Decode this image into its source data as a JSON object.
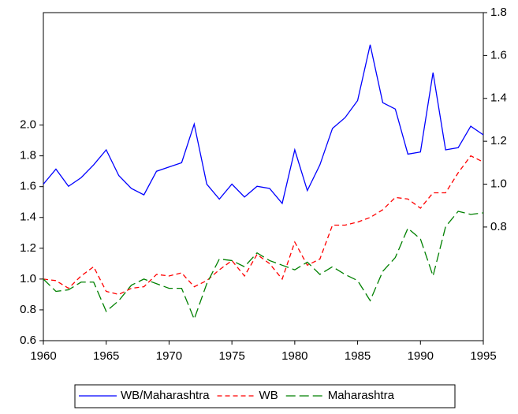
{
  "chart_data": {
    "type": "line",
    "x": [
      1960,
      1961,
      1962,
      1963,
      1964,
      1965,
      1966,
      1967,
      1968,
      1969,
      1970,
      1971,
      1972,
      1973,
      1974,
      1975,
      1976,
      1977,
      1978,
      1979,
      1980,
      1981,
      1982,
      1983,
      1984,
      1985,
      1986,
      1987,
      1988,
      1989,
      1990,
      1991,
      1992,
      1993,
      1994,
      1995
    ],
    "xlim": [
      1960,
      1995
    ],
    "xticks": [
      1960,
      1965,
      1970,
      1975,
      1980,
      1985,
      1990,
      1995
    ],
    "ylim": [
      0.6,
      2.73
    ],
    "yticks": [
      0.6,
      0.8,
      {
        "value": 1.0,
        "label": "1.0"
      },
      1.2,
      1.4,
      1.6,
      1.8,
      {
        "value": 2.0,
        "label": "2.0"
      }
    ],
    "y2lim": [
      0.27,
      1.8
    ],
    "y2ticks": [
      0.8,
      {
        "value": 1.0,
        "label": "1.0"
      },
      1.2,
      1.4,
      1.6,
      1.8
    ],
    "legend": "bottom",
    "series": [
      {
        "name": "WB/Maharashtra",
        "color": "#0000ff",
        "dash": "solid",
        "axis": "y2",
        "values": [
          1.0,
          1.07,
          0.99,
          1.03,
          1.09,
          1.16,
          1.04,
          0.98,
          0.95,
          1.06,
          1.08,
          1.1,
          1.28,
          1.0,
          0.93,
          1.0,
          0.94,
          0.99,
          0.98,
          0.91,
          1.16,
          0.97,
          1.09,
          1.26,
          1.31,
          1.39,
          1.65,
          1.38,
          1.35,
          1.14,
          1.15,
          1.52,
          1.16,
          1.17,
          1.27,
          1.23
        ]
      },
      {
        "name": "WB",
        "color": "#ff0000",
        "dash": "short",
        "values": [
          1.0,
          0.99,
          0.94,
          1.02,
          1.08,
          0.92,
          0.9,
          0.94,
          0.95,
          1.03,
          1.02,
          1.04,
          0.95,
          0.99,
          1.06,
          1.12,
          1.02,
          1.16,
          1.1,
          1.0,
          1.24,
          1.09,
          1.13,
          1.35,
          1.35,
          1.37,
          1.4,
          1.45,
          1.53,
          1.52,
          1.46,
          1.56,
          1.56,
          1.69,
          1.8,
          1.76
        ]
      },
      {
        "name": "Maharashtra",
        "color": "#008000",
        "dash": "long",
        "values": [
          1.0,
          0.92,
          0.93,
          0.98,
          0.98,
          0.79,
          0.86,
          0.96,
          1.0,
          0.97,
          0.94,
          0.94,
          0.74,
          0.97,
          1.13,
          1.12,
          1.08,
          1.17,
          1.12,
          1.09,
          1.06,
          1.11,
          1.03,
          1.08,
          1.03,
          0.99,
          0.86,
          1.05,
          1.14,
          1.33,
          1.26,
          1.02,
          1.34,
          1.44,
          1.42,
          1.43
        ]
      }
    ]
  }
}
